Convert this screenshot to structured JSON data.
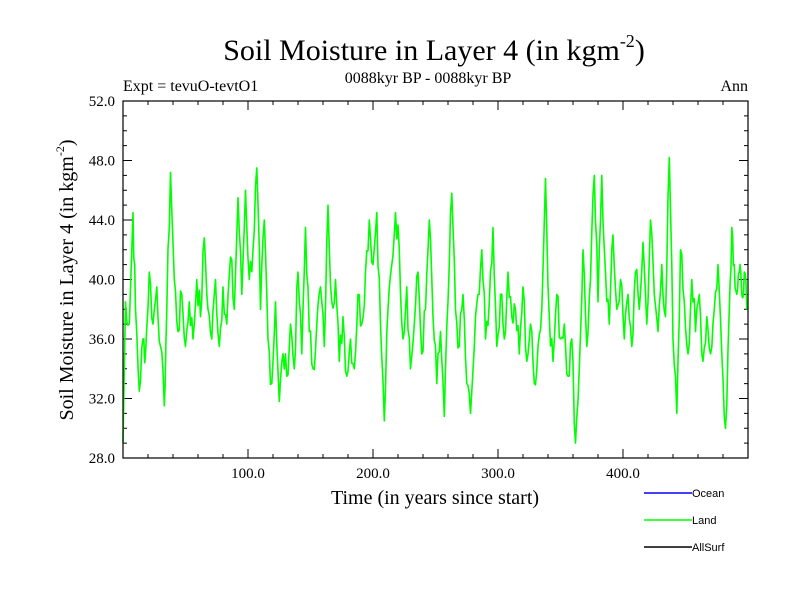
{
  "chart_data": {
    "type": "line",
    "title": "Soil Moisture in Layer 4 (in kgm",
    "title_superscript": "-2",
    "title_close": ")",
    "subtitle": "0088kyr BP - 0088kyr BP",
    "left_label": "Expt = tevuO-tevtO1",
    "right_label": "Ann",
    "xlabel": "Time (in years since start)",
    "ylabel": "Soil Moisture in Layer 4 (in kgm",
    "ylabel_superscript": "-2",
    "ylabel_close": ")",
    "xlim": [
      0,
      500
    ],
    "ylim": [
      28,
      52
    ],
    "x_ticks": [
      100,
      200,
      300,
      400
    ],
    "x_tick_labels": [
      "100.0",
      "200.0",
      "300.0",
      "400.0"
    ],
    "y_ticks": [
      28,
      32,
      36,
      40,
      44,
      48,
      52
    ],
    "y_tick_labels": [
      "28.0",
      "32.0",
      "36.0",
      "40.0",
      "44.0",
      "48.0",
      "52.0"
    ],
    "legend": [
      {
        "name": "Ocean",
        "color": "#0000ff"
      },
      {
        "name": "Land",
        "color": "#00ff00"
      },
      {
        "name": "AllSurf",
        "color": "#000000"
      }
    ],
    "series": [
      {
        "name": "Land",
        "color": "#00ff00",
        "keypoints": [
          [
            0,
            29.0
          ],
          [
            2,
            38.5
          ],
          [
            5,
            37.0
          ],
          [
            8,
            44.5
          ],
          [
            10,
            38.0
          ],
          [
            13,
            32.5
          ],
          [
            16,
            36.0
          ],
          [
            18,
            35.0
          ],
          [
            21,
            40.5
          ],
          [
            24,
            37.0
          ],
          [
            27,
            39.5
          ],
          [
            30,
            35.5
          ],
          [
            33,
            31.5
          ],
          [
            35,
            38.0
          ],
          [
            38,
            47.2
          ],
          [
            41,
            40.0
          ],
          [
            44,
            36.5
          ],
          [
            47,
            39.0
          ],
          [
            50,
            35.5
          ],
          [
            53,
            38.5
          ],
          [
            56,
            36.0
          ],
          [
            59,
            40.0
          ],
          [
            62,
            37.5
          ],
          [
            65,
            42.8
          ],
          [
            68,
            38.0
          ],
          [
            71,
            36.0
          ],
          [
            74,
            40.0
          ],
          [
            77,
            35.5
          ],
          [
            80,
            39.5
          ],
          [
            83,
            37.0
          ],
          [
            86,
            41.5
          ],
          [
            89,
            38.0
          ],
          [
            92,
            45.5
          ],
          [
            95,
            39.0
          ],
          [
            98,
            46.0
          ],
          [
            101,
            40.0
          ],
          [
            104,
            42.0
          ],
          [
            107,
            47.5
          ],
          [
            110,
            38.0
          ],
          [
            113,
            44.0
          ],
          [
            116,
            36.0
          ],
          [
            119,
            33.0
          ],
          [
            122,
            38.5
          ],
          [
            125,
            31.8
          ],
          [
            128,
            35.0
          ],
          [
            131,
            33.5
          ],
          [
            134,
            37.0
          ],
          [
            137,
            34.0
          ],
          [
            140,
            40.5
          ],
          [
            143,
            35.0
          ],
          [
            146,
            43.5
          ],
          [
            149,
            36.5
          ],
          [
            152,
            34.0
          ],
          [
            155,
            37.0
          ],
          [
            158,
            39.5
          ],
          [
            161,
            35.5
          ],
          [
            164,
            45.0
          ],
          [
            167,
            38.5
          ],
          [
            170,
            40.0
          ],
          [
            173,
            34.5
          ],
          [
            176,
            37.5
          ],
          [
            179,
            33.5
          ],
          [
            182,
            36.0
          ],
          [
            185,
            34.0
          ],
          [
            188,
            39.0
          ],
          [
            191,
            37.0
          ],
          [
            194,
            40.5
          ],
          [
            197,
            44.0
          ],
          [
            200,
            41.0
          ],
          [
            203,
            44.5
          ],
          [
            206,
            37.0
          ],
          [
            209,
            30.5
          ],
          [
            212,
            38.0
          ],
          [
            215,
            41.0
          ],
          [
            218,
            44.5
          ],
          [
            221,
            42.0
          ],
          [
            224,
            36.0
          ],
          [
            227,
            39.5
          ],
          [
            230,
            34.0
          ],
          [
            233,
            37.0
          ],
          [
            236,
            40.5
          ],
          [
            239,
            35.0
          ],
          [
            242,
            38.0
          ],
          [
            245,
            44.0
          ],
          [
            248,
            37.5
          ],
          [
            251,
            33.0
          ],
          [
            254,
            36.5
          ],
          [
            257,
            30.8
          ],
          [
            260,
            38.5
          ],
          [
            263,
            45.8
          ],
          [
            266,
            38.0
          ],
          [
            269,
            35.5
          ],
          [
            272,
            39.0
          ],
          [
            275,
            33.0
          ],
          [
            278,
            31.0
          ],
          [
            281,
            35.5
          ],
          [
            284,
            39.0
          ],
          [
            287,
            42.0
          ],
          [
            290,
            36.0
          ],
          [
            293,
            38.5
          ],
          [
            296,
            43.5
          ],
          [
            299,
            35.5
          ],
          [
            302,
            39.0
          ],
          [
            305,
            36.0
          ],
          [
            308,
            40.5
          ],
          [
            311,
            37.5
          ],
          [
            314,
            38.0
          ],
          [
            317,
            35.0
          ],
          [
            320,
            39.5
          ],
          [
            323,
            34.5
          ],
          [
            326,
            37.0
          ],
          [
            329,
            33.0
          ],
          [
            332,
            35.5
          ],
          [
            335,
            38.0
          ],
          [
            338,
            46.8
          ],
          [
            341,
            37.5
          ],
          [
            344,
            34.5
          ],
          [
            347,
            39.0
          ],
          [
            350,
            36.0
          ],
          [
            353,
            37.0
          ],
          [
            356,
            33.5
          ],
          [
            359,
            36.0
          ],
          [
            362,
            29.0
          ],
          [
            365,
            34.0
          ],
          [
            368,
            42.0
          ],
          [
            371,
            35.5
          ],
          [
            374,
            40.0
          ],
          [
            377,
            47.0
          ],
          [
            380,
            38.5
          ],
          [
            383,
            47.0
          ],
          [
            386,
            40.5
          ],
          [
            389,
            37.0
          ],
          [
            392,
            43.0
          ],
          [
            395,
            38.0
          ],
          [
            398,
            40.0
          ],
          [
            401,
            36.0
          ],
          [
            404,
            39.0
          ],
          [
            407,
            35.5
          ],
          [
            410,
            40.5
          ],
          [
            413,
            38.0
          ],
          [
            416,
            42.5
          ],
          [
            419,
            37.0
          ],
          [
            422,
            44.0
          ],
          [
            425,
            39.0
          ],
          [
            428,
            36.5
          ],
          [
            431,
            41.0
          ],
          [
            434,
            37.5
          ],
          [
            437,
            48.2
          ],
          [
            440,
            36.0
          ],
          [
            443,
            31.0
          ],
          [
            446,
            42.0
          ],
          [
            449,
            38.5
          ],
          [
            452,
            35.0
          ],
          [
            455,
            40.0
          ],
          [
            458,
            36.5
          ],
          [
            461,
            39.0
          ],
          [
            464,
            34.5
          ],
          [
            467,
            37.5
          ],
          [
            470,
            35.0
          ],
          [
            473,
            38.0
          ],
          [
            476,
            41.0
          ],
          [
            479,
            35.0
          ],
          [
            482,
            30.0
          ],
          [
            485,
            38.0
          ],
          [
            487,
            43.5
          ],
          [
            489,
            41.0
          ],
          [
            491,
            39.0
          ],
          [
            493,
            40.5
          ],
          [
            495,
            39.0
          ],
          [
            497,
            40.5
          ],
          [
            499,
            38.0
          ]
        ]
      }
    ]
  }
}
